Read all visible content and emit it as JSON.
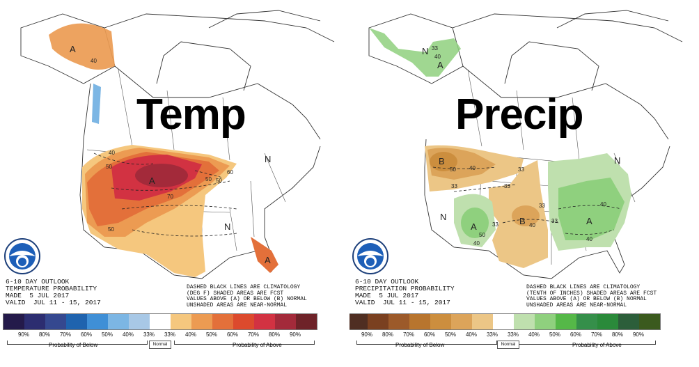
{
  "panels": {
    "temp": {
      "title": "Temp",
      "outlook_lines": [
        "6-10 DAY OUTLOOK",
        "TEMPERATURE PROBABILITY",
        "MADE  5 JUL 2017",
        "VALID  JUL 11 - 15, 2017"
      ],
      "note_lines": [
        "DASHED BLACK LINES ARE CLIMATOLOGY",
        "(DEG F) SHADED AREAS ARE FCST",
        "VALUES ABOVE (A) OR BELOW (B) NORMAL",
        "UNSHADED AREAS ARE NEAR-NORMAL"
      ],
      "legend": {
        "colors": [
          "#241a4a",
          "#2c2d70",
          "#35488f",
          "#1f63ae",
          "#3f8fd6",
          "#7cb6e4",
          "#a8c8e6",
          "#ffffff",
          "#f5c77e",
          "#ec9b52",
          "#e3703a",
          "#dc4a2d",
          "#d23242",
          "#a32a3a",
          "#6e2228"
        ],
        "ticks": [
          "90%",
          "80%",
          "70%",
          "60%",
          "50%",
          "40%",
          "33%",
          "33%",
          "40%",
          "50%",
          "60%",
          "70%",
          "80%",
          "90%"
        ],
        "below_label": "Probability of Below",
        "normal_label": "Normal",
        "above_label": "Probability of Above"
      },
      "map_labels": [
        "A",
        "A",
        "A",
        "N",
        "N",
        "40",
        "50",
        "50",
        "70",
        "50",
        "40",
        "50",
        "60"
      ]
    },
    "precip": {
      "title": "Precip",
      "outlook_lines": [
        "6-10 DAY OUTLOOK",
        "PRECIPITATION PROBABILITY",
        "MADE  5 JUL 2017",
        "VALID  JUL 11 - 15, 2017"
      ],
      "note_lines": [
        "DASHED BLACK LINES ARE CLIMATOLOGY",
        "(TENTH OF INCHES) SHADED AREAS ARE FCST",
        "VALUES ABOVE (A) OR BELOW (B) NORMAL",
        "UNSHADED AREAS ARE NEAR-NORMAL"
      ],
      "legend": {
        "colors": [
          "#4f2e22",
          "#7a4020",
          "#9c5a2a",
          "#b8752e",
          "#cc8e3e",
          "#dca45a",
          "#ecc686",
          "#ffffff",
          "#bfe0ae",
          "#8fd07e",
          "#55b848",
          "#358f4a",
          "#2a8a3a",
          "#2c5e3a",
          "#3b5a1e"
        ],
        "ticks": [
          "90%",
          "80%",
          "70%",
          "60%",
          "50%",
          "40%",
          "33%",
          "33%",
          "40%",
          "50%",
          "60%",
          "70%",
          "80%",
          "90%"
        ],
        "below_label": "Probability of Below",
        "normal_label": "Normal",
        "above_label": "Probability of Above"
      },
      "map_labels": [
        "N",
        "A",
        "B",
        "A",
        "B",
        "A",
        "N",
        "N",
        "33",
        "40",
        "50",
        "40",
        "33",
        "33",
        "33",
        "33",
        "33",
        "40",
        "33",
        "40",
        "50",
        "40",
        "40"
      ]
    }
  }
}
